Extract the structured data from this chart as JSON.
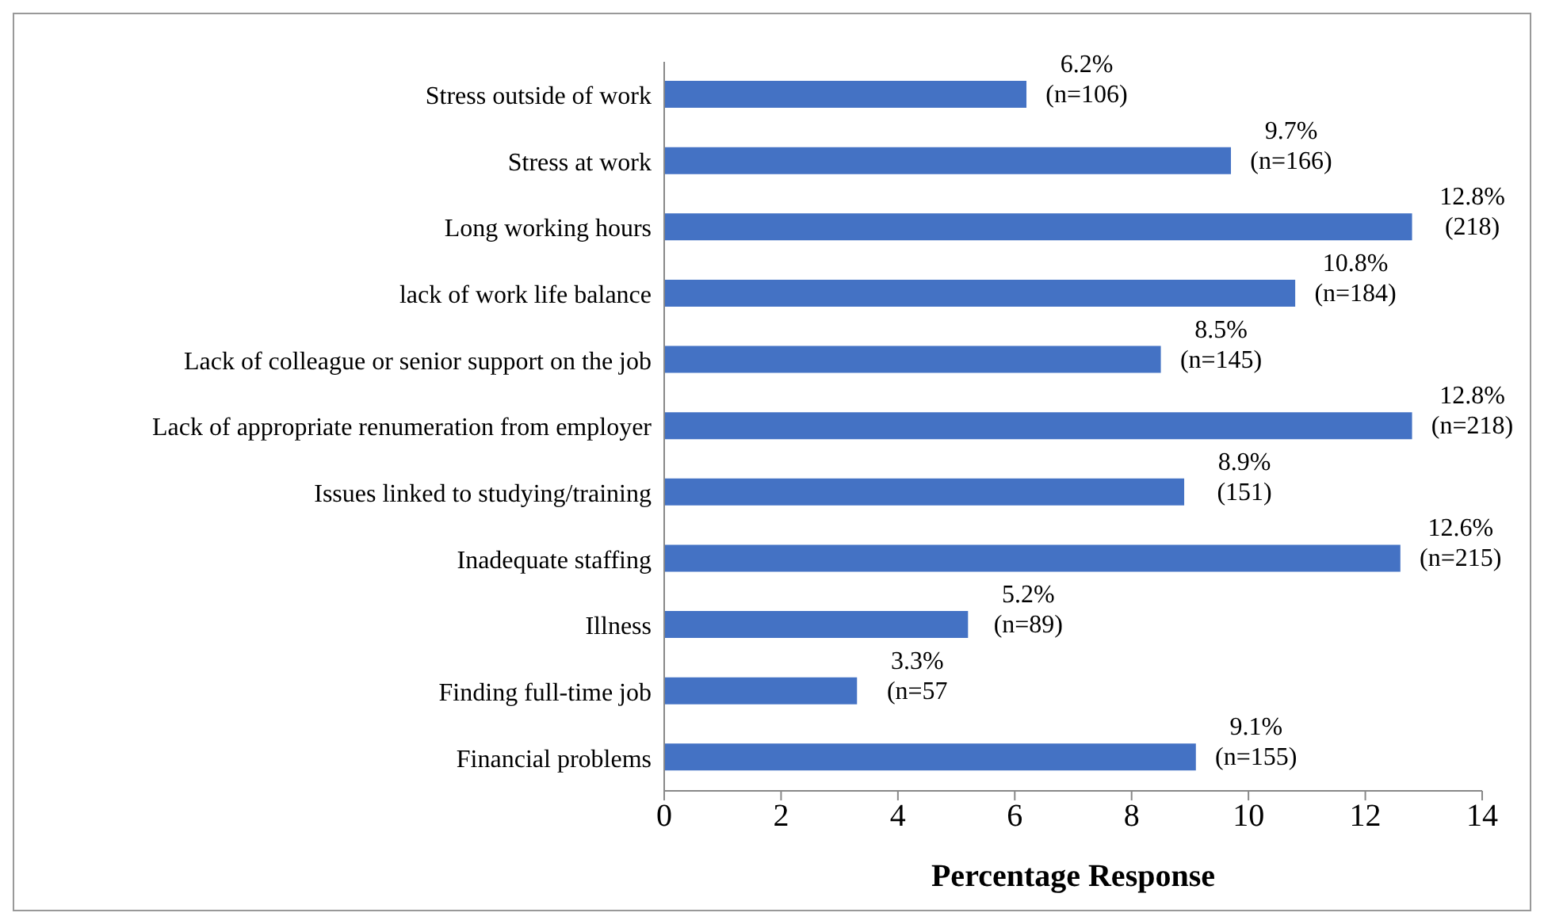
{
  "chart_data": {
    "type": "bar",
    "orientation": "horizontal",
    "xlabel": "Percentage Response",
    "categories": [
      "Stress outside of work",
      "Stress at work",
      "Long working hours ",
      "lack of work life balance",
      "Lack of colleague or senior support on the job",
      "Lack of appropriate renumeration from employer",
      "Issues linked to studying/training",
      "Inadequate staffing",
      "Illness",
      "Finding full-time job",
      "Financial problems"
    ],
    "values": [
      6.2,
      9.7,
      12.8,
      10.8,
      8.5,
      12.8,
      8.9,
      12.6,
      5.2,
      3.3,
      9.1
    ],
    "value_labels": [
      "6.2%\n(n=106)",
      "9.7%\n(n=166)",
      "12.8%\n(218)",
      "10.8%\n(n=184)",
      "8.5%\n(n=145)",
      "12.8%\n(n=218)",
      "8.9%\n(151)",
      "12.6%\n(n=215)",
      "5.2%\n(n=89)",
      "3.3%\n(n=57",
      "9.1%\n(n=155)"
    ],
    "color": "#4472c4",
    "xlim": [
      0,
      14
    ],
    "xticks": [
      0,
      2,
      4,
      6,
      8,
      10,
      12,
      14
    ],
    "grid": false,
    "legend": false
  }
}
